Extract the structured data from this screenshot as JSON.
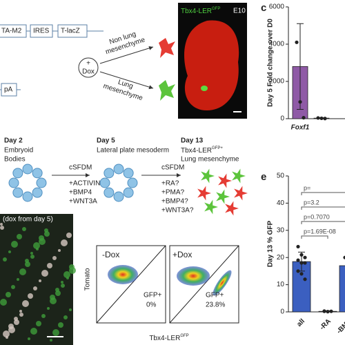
{
  "construct": {
    "parts": [
      "TA-M2",
      "IRES",
      "T-lacZ"
    ],
    "tail": "pA"
  },
  "dox": {
    "symbol": "+",
    "label": "Dox"
  },
  "fates": [
    {
      "label": [
        "Non lung",
        "mesenchyme"
      ]
    },
    {
      "label": [
        "Lung",
        "mesenchyme"
      ]
    }
  ],
  "embryo": {
    "reporter": {
      "main": "Tbx4-LER",
      "sup": "GFP"
    },
    "stage": "E10"
  },
  "protocol": {
    "stages": [
      {
        "day": "Day 2",
        "desc": [
          "Embryoid",
          "Bodies"
        ]
      },
      {
        "day": "Day 5",
        "desc": [
          "Lateral plate mesoderm"
        ]
      },
      {
        "day": "Day 13",
        "reporter": {
          "main": "Tbx4-LER",
          "sup": "GFP+"
        },
        "desc": [
          "Lung mesenchyme"
        ]
      }
    ],
    "steps": [
      {
        "medium": "cSFDM",
        "factors": [
          "+ACTIVIN A",
          "+BMP4",
          "+WNT3A"
        ]
      },
      {
        "medium": "cSFDM",
        "factors": [
          "+RA?",
          "+PMA?",
          "+BMP4?",
          "+WNT3A?"
        ]
      }
    ]
  },
  "micrograph": {
    "caption": "(dox from day 5)"
  },
  "flow": {
    "y_label": "Tomato",
    "x_label": {
      "main": "Tbx4-LER",
      "sup": "GFP"
    },
    "plots": [
      {
        "condition": "-Dox",
        "gate": "GFP+",
        "percent": "0%"
      },
      {
        "condition": "+Dox",
        "gate": "GFP+",
        "percent": "23.8%"
      }
    ]
  },
  "chart_data": [
    {
      "panel": "c",
      "type": "bar",
      "y_label": "Day 5 Fold change over D0",
      "categories": [
        "Foxf1",
        null
      ],
      "values": [
        2800,
        30
      ],
      "errors": [
        2300,
        20
      ],
      "points": [
        [
          4100,
          900,
          50
        ],
        [
          40,
          20,
          10
        ]
      ],
      "colors": [
        "#8f5aa6",
        "#3d7a3d"
      ],
      "ylim": [
        0,
        6000
      ],
      "yticks": [
        0,
        2000,
        4000,
        6000
      ]
    },
    {
      "panel": "e",
      "type": "bar",
      "y_label": "Day 13 % GFP",
      "categories": [
        "all",
        "-RA",
        "-BMP"
      ],
      "values": [
        18.5,
        0.2,
        17
      ],
      "errors": [
        3.5,
        0.2,
        3
      ],
      "points": [
        [
          24,
          21,
          20,
          19,
          18,
          18,
          15,
          14,
          12
        ],
        [
          0.3,
          0.1,
          0.2,
          0.2
        ],
        [
          20,
          17,
          14
        ]
      ],
      "colors": [
        "#3b5fc0",
        "#3b5fc0",
        "#3b5fc0"
      ],
      "annotations": [
        "p=",
        "p=3.2",
        "p=0.7070",
        "p=1.69E-08"
      ],
      "ylim": [
        0,
        50
      ],
      "yticks": [
        0,
        10,
        20,
        30,
        40,
        50
      ]
    }
  ]
}
